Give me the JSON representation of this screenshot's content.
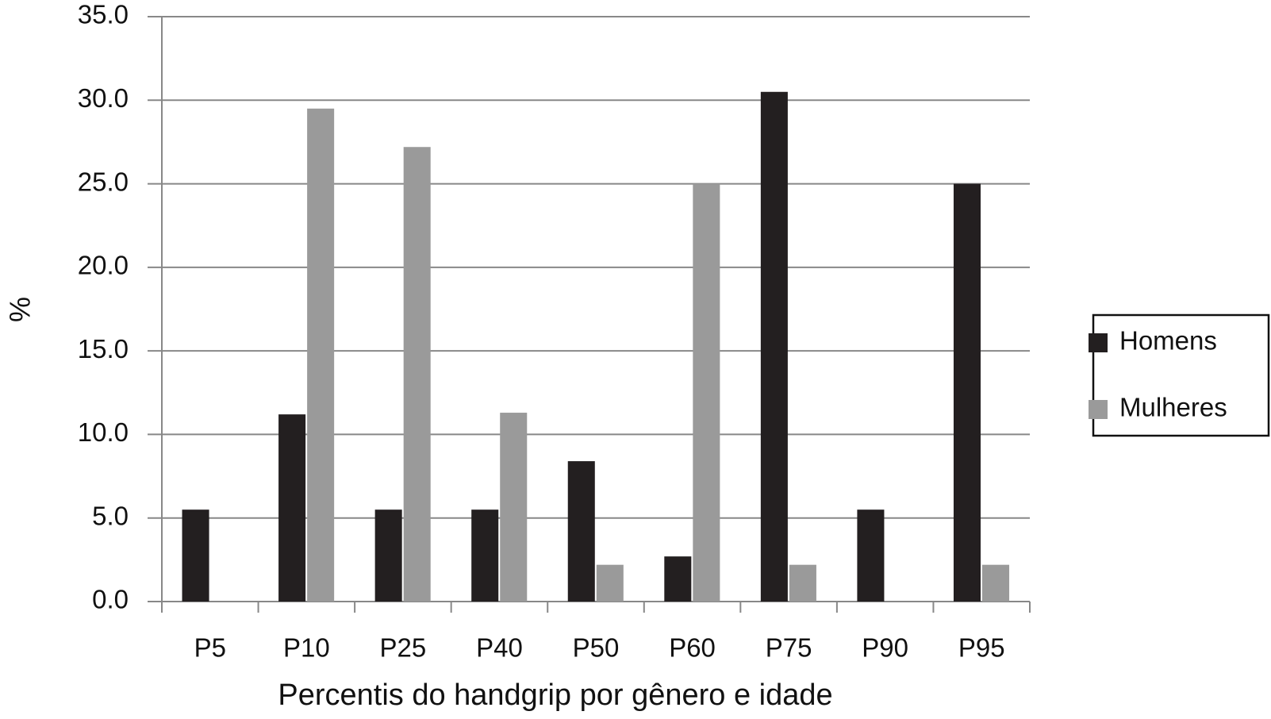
{
  "chart_data": {
    "type": "bar",
    "x_label": "Percentis do handgrip por gênero e idade",
    "y_label": "%",
    "categories": [
      "P5",
      "P10",
      "P25",
      "P40",
      "P50",
      "P60",
      "P75",
      "P90",
      "P95"
    ],
    "series": [
      {
        "name": "Homens",
        "color": "#231f20",
        "values": [
          5.5,
          11.2,
          5.5,
          5.5,
          8.4,
          2.7,
          30.5,
          5.5,
          25.0
        ]
      },
      {
        "name": "Mulheres",
        "color": "#9a9a9a",
        "values": [
          0,
          29.5,
          27.2,
          11.3,
          2.2,
          25.0,
          2.2,
          0,
          2.2
        ]
      }
    ],
    "ylim": [
      0,
      35
    ],
    "yticks": [
      {
        "value": 0,
        "label": "0.0"
      },
      {
        "value": 5,
        "label": "5.0"
      },
      {
        "value": 10,
        "label": "10.0"
      },
      {
        "value": 15,
        "label": "15.0"
      },
      {
        "value": 20,
        "label": "20.0"
      },
      {
        "value": 25,
        "label": "25.0"
      },
      {
        "value": 30,
        "label": "30.0"
      },
      {
        "value": 35,
        "label": "35.0"
      }
    ],
    "grid": true,
    "legend": "right"
  }
}
